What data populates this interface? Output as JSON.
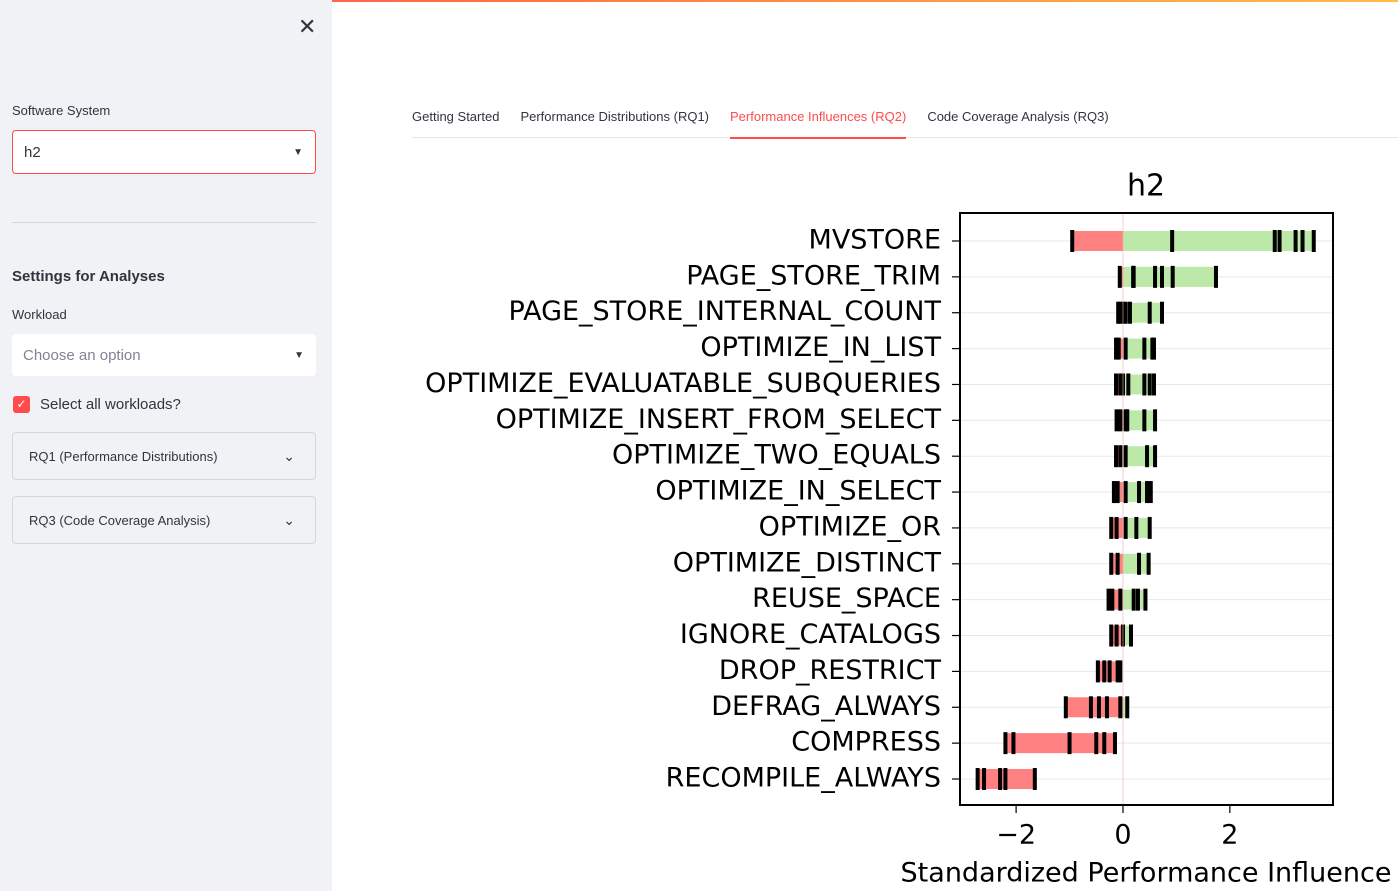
{
  "sidebar": {
    "software_label": "Software System",
    "software_value": "h2",
    "settings_title": "Settings for Analyses",
    "workload_label": "Workload",
    "workload_placeholder": "Choose an option",
    "checkbox_label": "Select all workloads?",
    "expanders": [
      "RQ1 (Performance Distributions)",
      "RQ3 (Code Coverage Analysis)"
    ]
  },
  "tabs": [
    "Getting Started",
    "Performance Distributions (RQ1)",
    "Performance Influences (RQ2)",
    "Code Coverage Analysis (RQ3)"
  ],
  "chart_data": {
    "type": "strip",
    "title": "h2",
    "xlabel": "Standardized Performance Influence",
    "categories": [
      "MVSTORE",
      "PAGE_STORE_TRIM",
      "PAGE_STORE_INTERNAL_COUNT",
      "OPTIMIZE_IN_LIST",
      "OPTIMIZE_EVALUATABLE_SUBQUERIES",
      "OPTIMIZE_INSERT_FROM_SELECT",
      "OPTIMIZE_TWO_EQUALS",
      "OPTIMIZE_IN_SELECT",
      "OPTIMIZE_OR",
      "OPTIMIZE_DISTINCT",
      "REUSE_SPACE",
      "IGNORE_CATALOGS",
      "DROP_RESTRICT",
      "DEFRAG_ALWAYS",
      "COMPRESS",
      "RECOMPILE_ALWAYS"
    ],
    "values": [
      [
        -0.95,
        0.92,
        2.84,
        2.93,
        3.23,
        3.36,
        3.57
      ],
      [
        -0.06,
        0.19,
        0.2,
        0.6,
        0.73,
        0.93,
        1.74
      ],
      [
        -0.09,
        -0.05,
        0.0,
        0.05,
        0.13,
        0.5,
        0.73
      ],
      [
        -0.13,
        -0.08,
        0.05,
        0.4,
        0.55,
        0.58
      ],
      [
        -0.13,
        -0.05,
        0.0,
        0.1,
        0.4,
        0.5,
        0.58
      ],
      [
        -0.12,
        -0.05,
        0.05,
        0.08,
        0.4,
        0.6
      ],
      [
        -0.13,
        -0.05,
        0.05,
        0.45,
        0.6
      ],
      [
        -0.17,
        -0.1,
        0.05,
        0.3,
        0.45,
        0.52
      ],
      [
        -0.22,
        -0.12,
        0.05,
        0.25,
        0.5
      ],
      [
        -0.22,
        -0.1,
        0.3,
        0.48
      ],
      [
        -0.27,
        -0.2,
        -0.05,
        0.2,
        0.28,
        0.42
      ],
      [
        -0.22,
        -0.12,
        0.0,
        0.15
      ],
      [
        -0.47,
        -0.35,
        -0.25,
        -0.1,
        -0.05
      ],
      [
        -1.07,
        -0.6,
        -0.45,
        -0.3,
        -0.05,
        0.08
      ],
      [
        -2.2,
        -2.05,
        -1.0,
        -0.5,
        -0.35,
        -0.15
      ],
      [
        -2.72,
        -2.6,
        -2.3,
        -2.2,
        -1.65
      ]
    ],
    "negative_color": "#ff8080",
    "positive_color": "#bde9a8",
    "tick_color": "#000000",
    "xlim": [
      -3.05,
      3.93
    ],
    "xticks": [
      {
        "value": -2,
        "label": "−2"
      },
      0,
      2
    ],
    "grid": true
  }
}
